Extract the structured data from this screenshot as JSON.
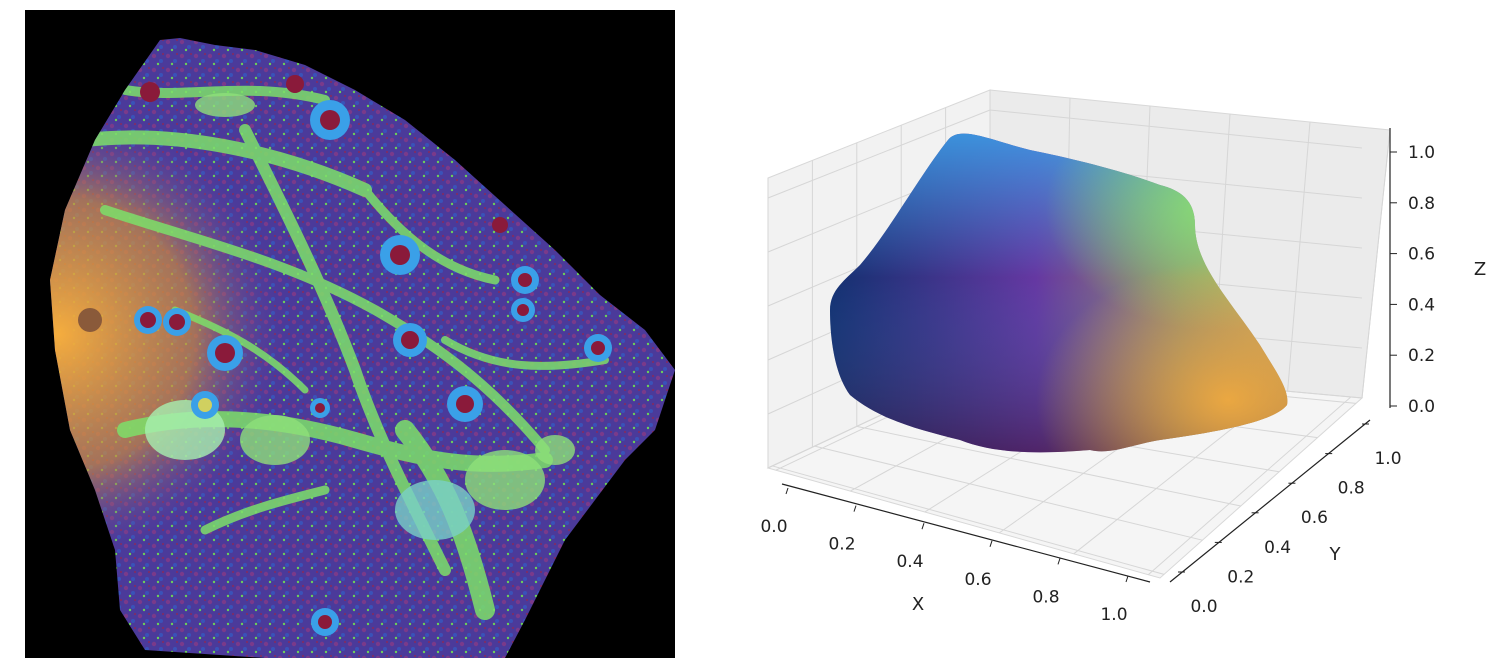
{
  "colors": {
    "background": "#000000",
    "tissue_purple": "#5a3fa8",
    "tissue_green": "#7de06a",
    "tissue_orange": "#f2a640",
    "tissue_blue": "#3aa0e8",
    "tissue_red": "#8a1a3a"
  },
  "chart_data": [
    {
      "type": "image",
      "description_panel": "spatial tissue map"
    },
    {
      "type": "scatter3d",
      "xlabel": "X",
      "ylabel": "Y",
      "zlabel": "Z",
      "xlim": [
        0.0,
        1.0
      ],
      "ylim": [
        0.0,
        1.0
      ],
      "zlim": [
        0.0,
        1.0
      ],
      "x_ticks": [
        "0.0",
        "0.2",
        "0.4",
        "0.6",
        "0.8",
        "1.0"
      ],
      "y_ticks": [
        "0.0",
        "0.2",
        "0.4",
        "0.6",
        "0.8",
        "1.0"
      ],
      "z_ticks": [
        "0.0",
        "0.2",
        "0.4",
        "0.6",
        "0.8",
        "1.0"
      ],
      "grid": true,
      "color_mapping": "rgb from position",
      "corner_colors": {
        "left": "#0a2360",
        "top": "#3aa0e8",
        "right_top": "#8ae070",
        "right": "#f5ad3e",
        "bottom": "#4a1850",
        "center": "#6a2c9a"
      }
    }
  ]
}
